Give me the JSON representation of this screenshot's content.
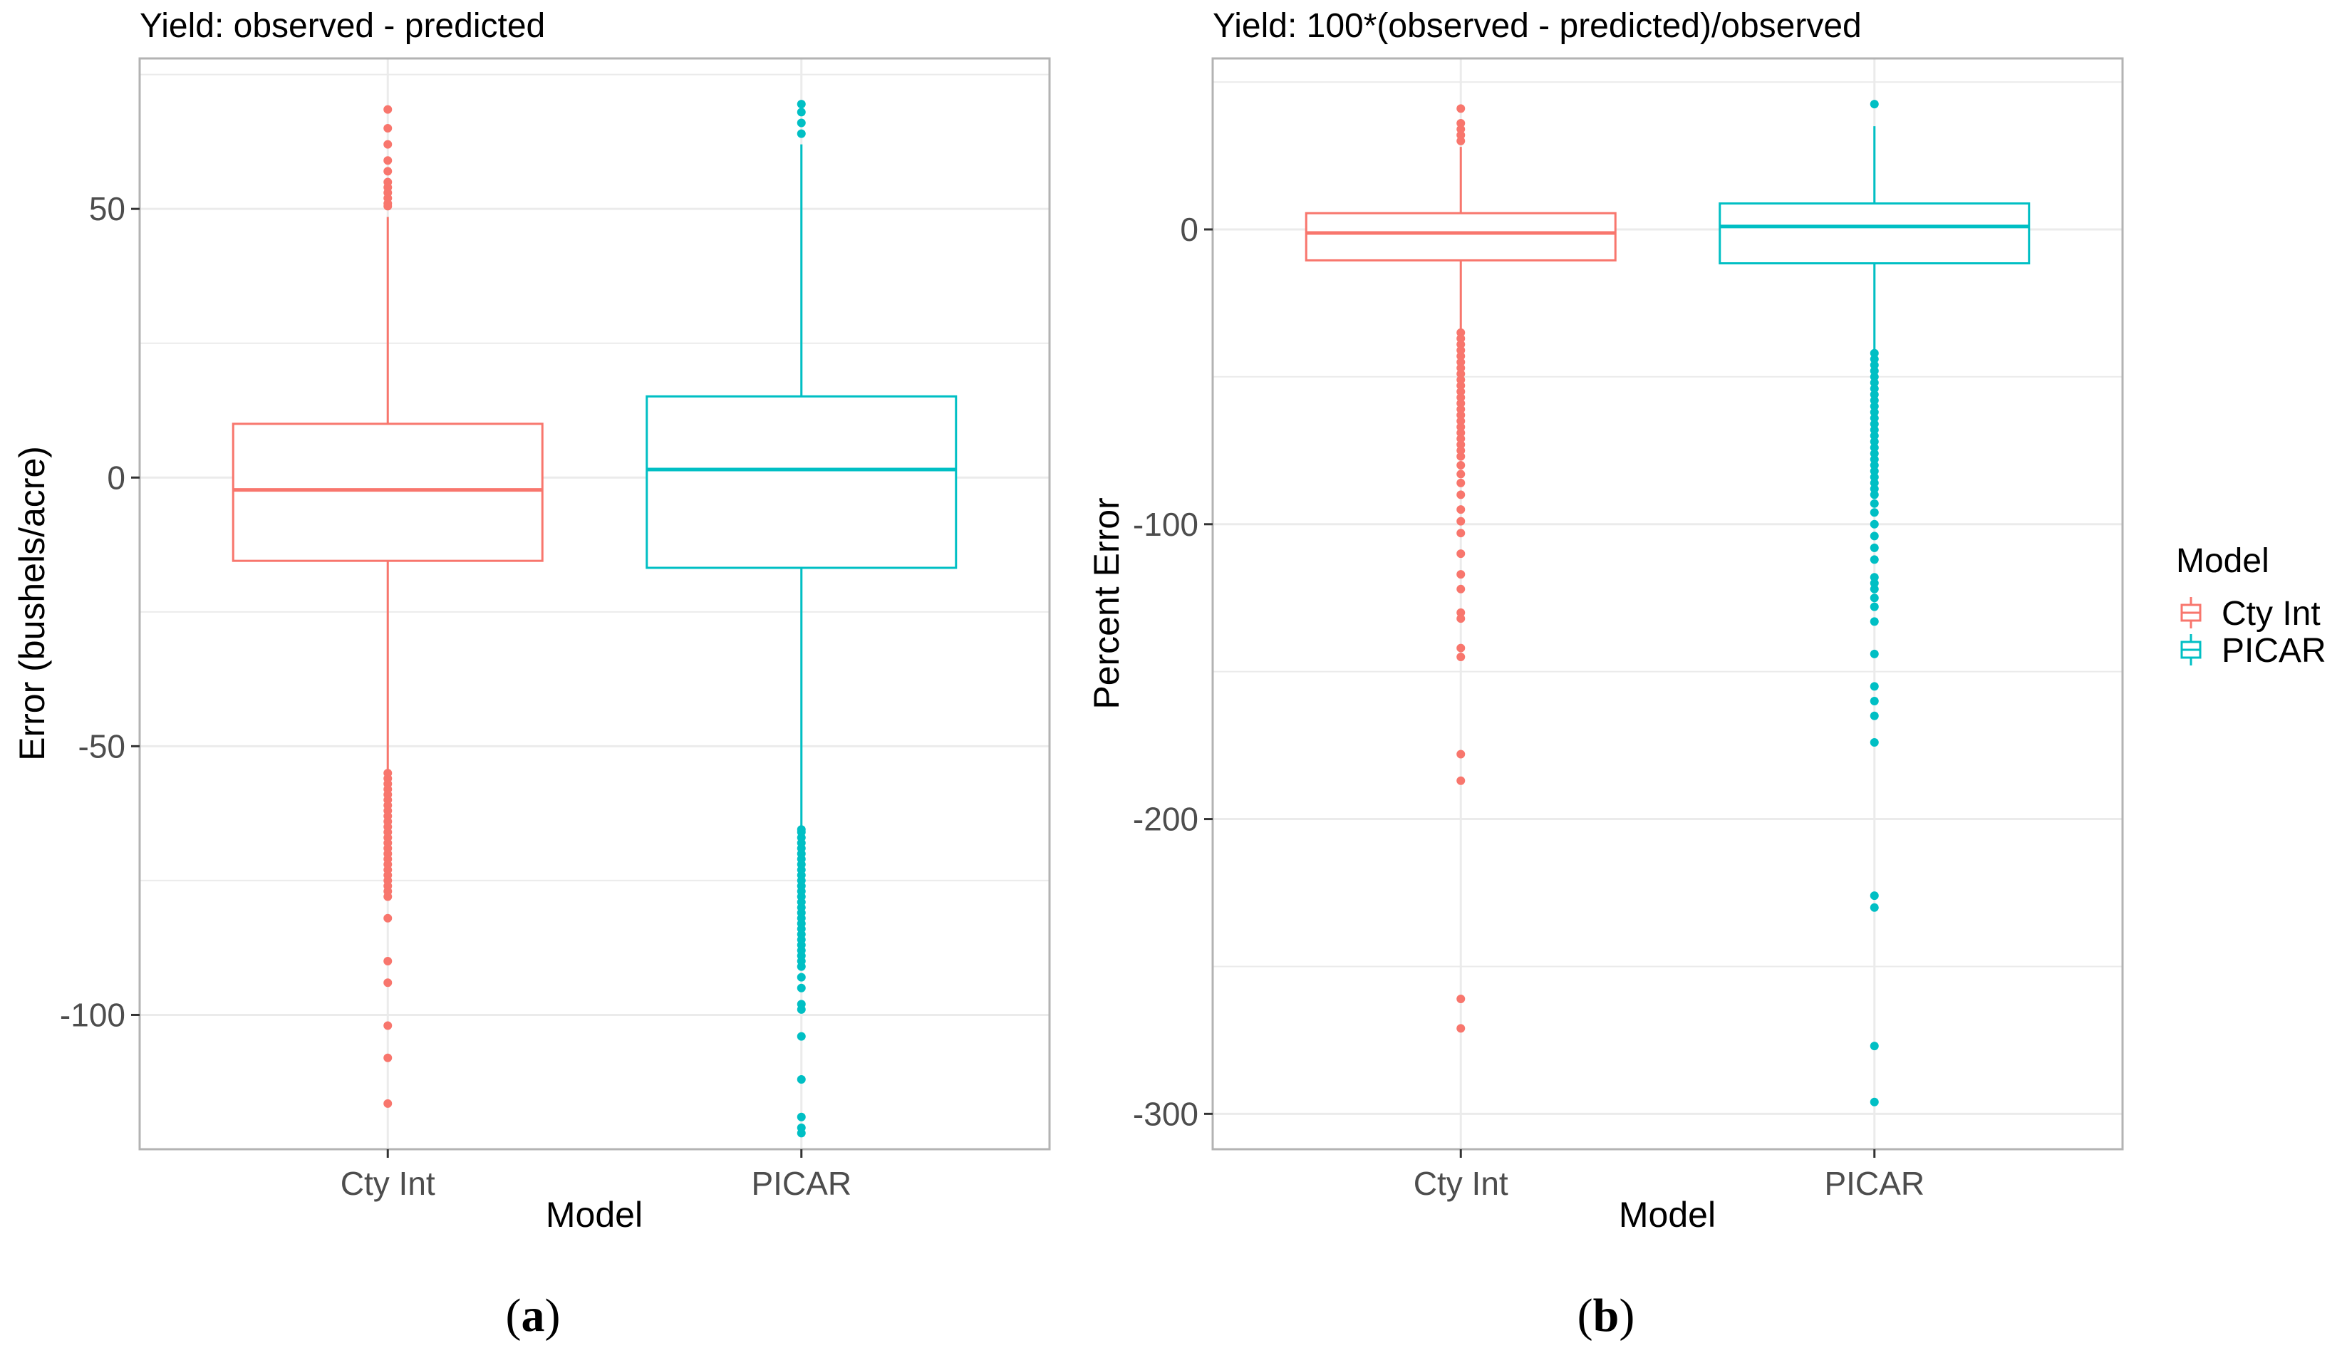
{
  "colors": {
    "cty_int": "#F8766D",
    "picar": "#00BFC4",
    "grid": "#ebebeb",
    "panel_border": "#b3b3b3",
    "tick_text": "#4d4d4d"
  },
  "legend": {
    "title": "Model",
    "items": [
      {
        "label": "Cty Int",
        "color": "#F8766D"
      },
      {
        "label": "PICAR",
        "color": "#00BFC4"
      }
    ]
  },
  "captions": {
    "a": "a",
    "b": "b"
  },
  "chart_data": [
    {
      "type": "box",
      "title": "Yield: observed - predicted",
      "xlabel": "Model",
      "ylabel": "Error (bushels/acre)",
      "categories": [
        "Cty Int",
        "PICAR"
      ],
      "ylim": [
        -125,
        78
      ],
      "yticks": [
        50,
        0,
        -50,
        -100
      ],
      "ytick_labels": [
        "50",
        "0",
        "-50",
        "-100"
      ],
      "grid": true,
      "series": [
        {
          "name": "Cty Int",
          "q1": -15.5,
          "median": -2.3,
          "q3": 10.0,
          "whisker_low": -54.5,
          "whisker_high": 48.5,
          "outliers": [
            68.5,
            65,
            62,
            59,
            57,
            55,
            54,
            53,
            52,
            51,
            50.5,
            -55,
            -56,
            -57,
            -58,
            -59,
            -60,
            -61,
            -62,
            -63,
            -64,
            -65,
            -66,
            -67,
            -68,
            -69,
            -70,
            -71,
            -72,
            -73,
            -74,
            -75,
            -76,
            -77,
            -78,
            -82,
            -90,
            -94,
            -102,
            -108,
            -116.5
          ]
        },
        {
          "name": "PICAR",
          "q1": -16.8,
          "median": 1.5,
          "q3": 15.1,
          "whisker_low": -65,
          "whisker_high": 62,
          "outliers": [
            69.5,
            68,
            66,
            64,
            -65.5,
            -66,
            -67,
            -68,
            -69,
            -70,
            -71,
            -72,
            -73,
            -74,
            -75,
            -76,
            -77,
            -78,
            -79,
            -80,
            -81,
            -82,
            -83,
            -84,
            -85,
            -86,
            -87,
            -88,
            -89,
            -90,
            -91,
            -93,
            -95,
            -98,
            -99,
            -104,
            -112,
            -119,
            -121,
            -122
          ]
        }
      ]
    },
    {
      "type": "box",
      "title": "Yield: 100*(observed - predicted)/observed",
      "xlabel": "Model",
      "ylabel": "Percent Error",
      "categories": [
        "Cty Int",
        "PICAR"
      ],
      "ylim": [
        -312,
        58
      ],
      "yticks": [
        0,
        -100,
        -200,
        -300
      ],
      "ytick_labels": [
        "0",
        "-100",
        "-200",
        "-300"
      ],
      "grid": true,
      "series": [
        {
          "name": "Cty Int",
          "q1": -10.5,
          "median": -1.2,
          "q3": 5.5,
          "whisker_low": -35,
          "whisker_high": 28,
          "outliers": [
            41,
            36,
            34,
            32,
            30,
            -35,
            -37,
            -39,
            -41,
            -43,
            -45,
            -47,
            -49,
            -51,
            -53,
            -55,
            -57,
            -59,
            -61,
            -63,
            -65,
            -67,
            -69,
            -71,
            -73,
            -75,
            -77,
            -80,
            -83,
            -86,
            -90,
            -95,
            -99,
            -103,
            -110,
            -117,
            -122,
            -130,
            -132,
            -142,
            -145,
            -178,
            -187,
            -261,
            -271
          ]
        },
        {
          "name": "PICAR",
          "q1": -11.5,
          "median": 1.0,
          "q3": 8.8,
          "whisker_low": -42,
          "whisker_high": 35,
          "outliers": [
            42.5,
            -42,
            -44,
            -46,
            -48,
            -50,
            -52,
            -54,
            -56,
            -58,
            -60,
            -62,
            -64,
            -66,
            -68,
            -70,
            -72,
            -74,
            -76,
            -78,
            -80,
            -82,
            -84,
            -86,
            -88,
            -90,
            -93,
            -96,
            -100,
            -104,
            -108,
            -112,
            -118,
            -120,
            -122,
            -125,
            -128,
            -133,
            -144,
            -155,
            -160,
            -165,
            -174,
            -226,
            -230,
            -277,
            -296
          ]
        }
      ]
    }
  ]
}
